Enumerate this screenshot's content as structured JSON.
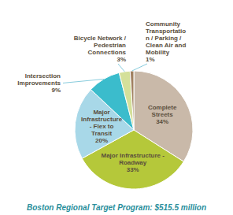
{
  "chart_data": {
    "type": "pie",
    "title": "Boston Regional Target Program: $515.5 million",
    "categories": [
      "Complete\nStreets",
      "Major Infrastructure -\nRoadway",
      "Major\nInfrastructure\n- Flex to\nTransit",
      "Intersection\nImprovements",
      "Bicycle Network /\nPedestrian\nConnections",
      "Community\nTransportatio\nn / Parking /\nClean Air and\nMobility"
    ],
    "values": [
      34,
      33,
      20,
      9,
      3,
      1
    ],
    "value_labels": [
      "34%",
      "33%",
      "20%",
      "9%",
      "3%",
      "1%"
    ],
    "data_labels": true,
    "colors": [
      "#c9b9a9",
      "#b5c83a",
      "#a8d8e8",
      "#3bbccc",
      "#d4e09a",
      "#a08060"
    ]
  }
}
